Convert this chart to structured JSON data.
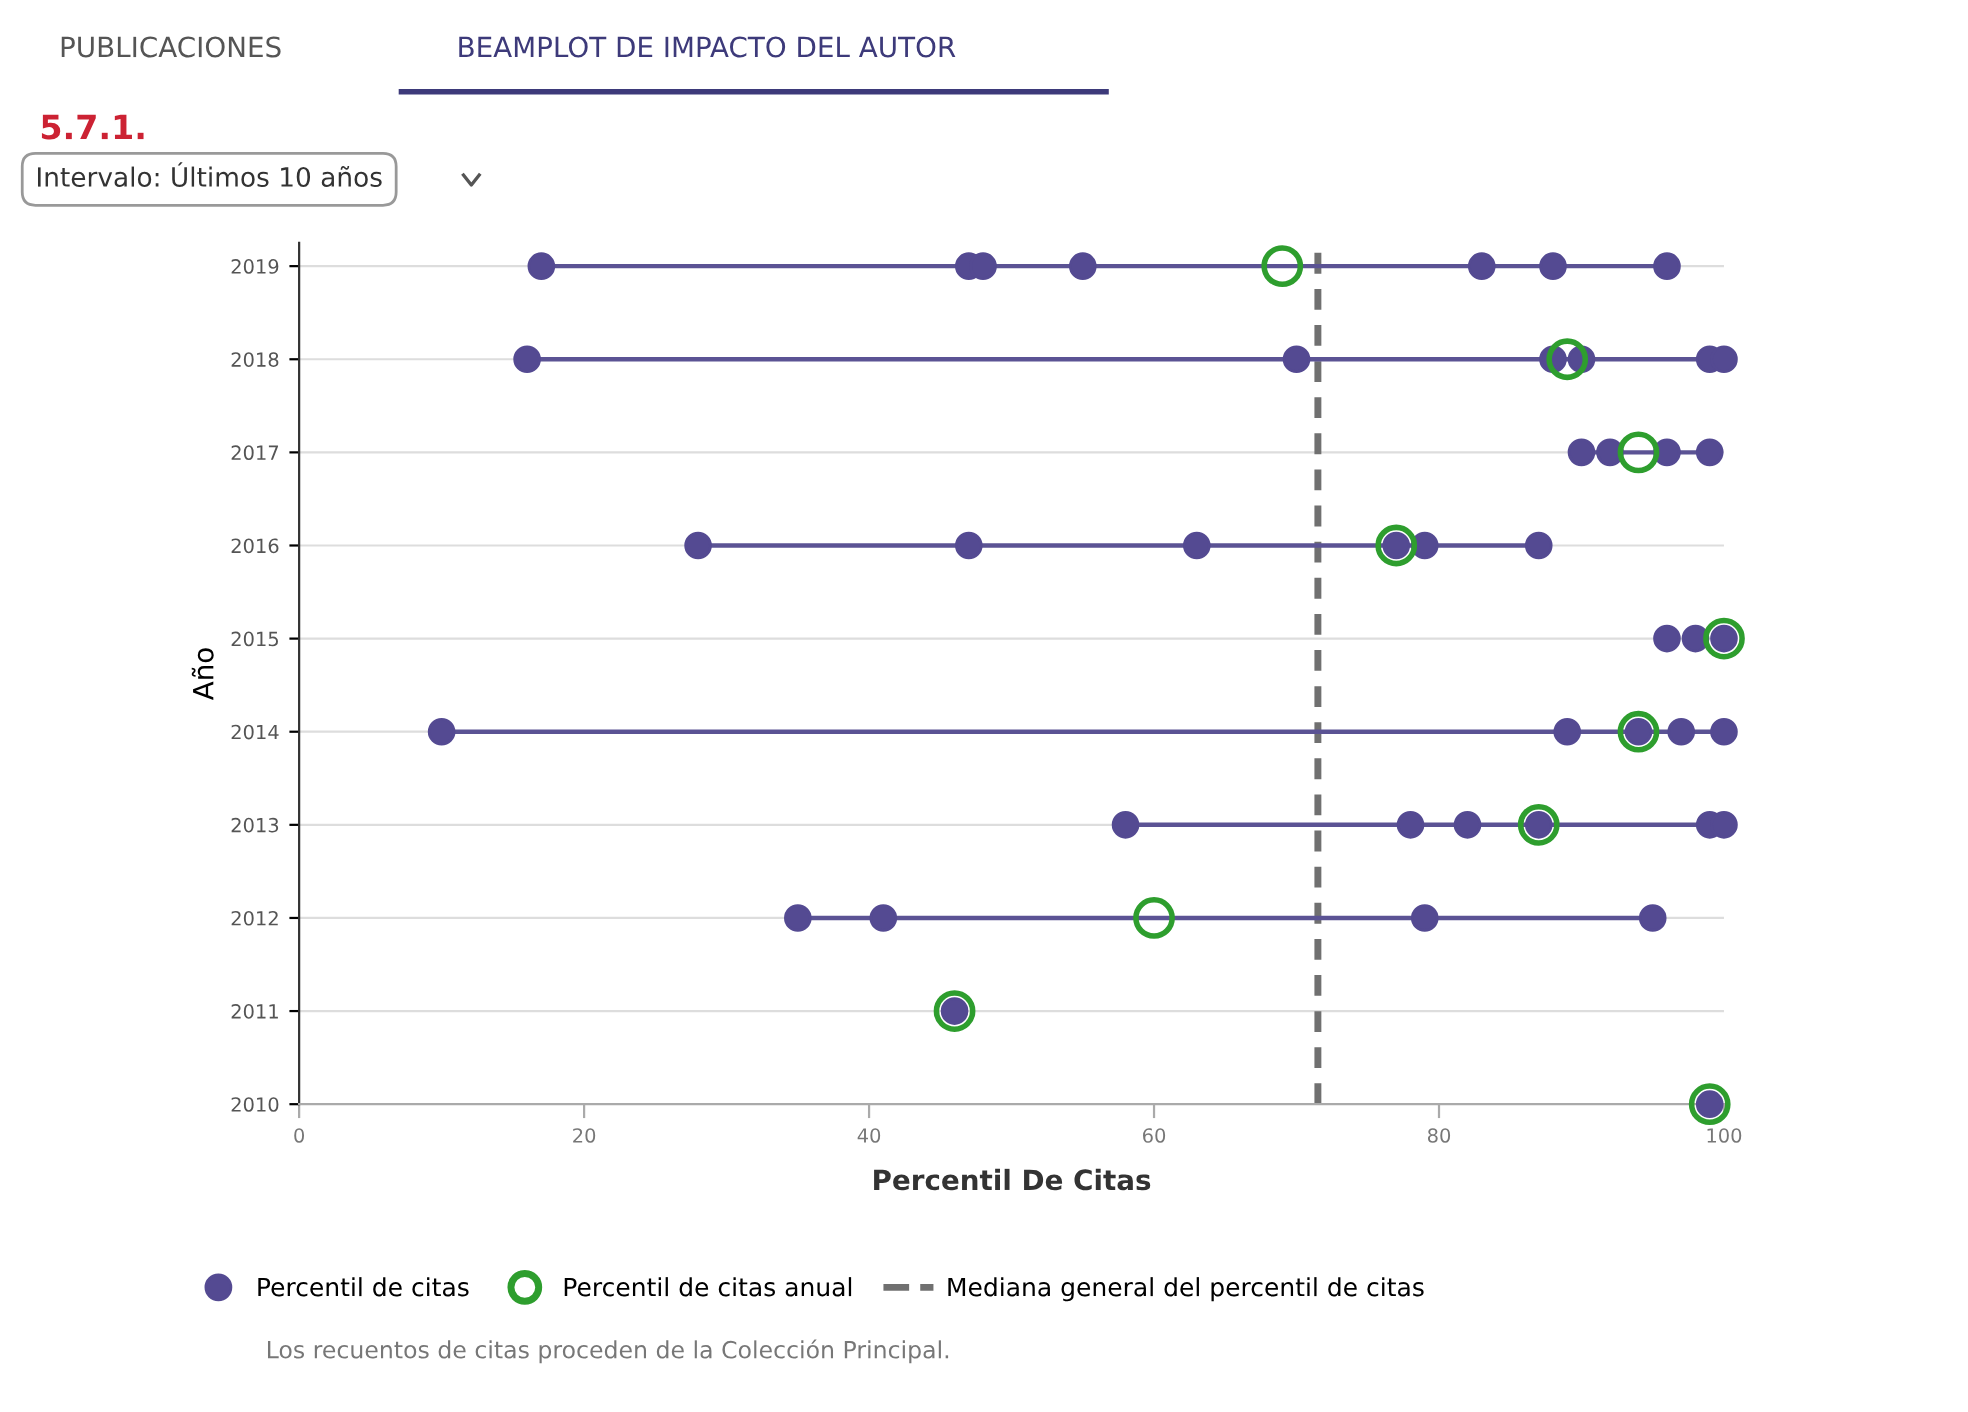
{
  "chart_data": {
    "type": "scatter",
    "xlabel": "Percentil De Citas",
    "ylabel": "Año",
    "annotations": [
      "PUBLICACIONES",
      "BEAMPLOT DE IMPACTO DEL AUTOR",
      "5.7.1.",
      "Intervalo: Últimos 10 años",
      "Los recuentos de citas proceden de la Colección Principal."
    ],
    "xlim": [
      0,
      100
    ],
    "xticks": [
      0,
      20,
      40,
      60,
      80,
      100
    ],
    "ylim": [
      2010,
      2019.25
    ],
    "yticks": [
      2010,
      2011,
      2012,
      2013,
      2014,
      2015,
      2016,
      2017,
      2018,
      2019
    ],
    "grid": "y",
    "legend": "bottom",
    "marker": "circle",
    "series": [
      {
        "type": "line",
        "color": "#5b5394",
        "x": [
          17,
          96
        ],
        "values": [
          2019,
          2019
        ]
      },
      {
        "type": "line",
        "color": "#5b5394",
        "x": [
          16,
          100
        ],
        "values": [
          2018,
          2018
        ]
      },
      {
        "type": "line",
        "color": "#5b5394",
        "x": [
          90,
          99
        ],
        "values": [
          2017,
          2017
        ]
      },
      {
        "type": "line",
        "color": "#5b5394",
        "x": [
          28,
          87
        ],
        "values": [
          2016,
          2016
        ]
      },
      {
        "type": "line",
        "color": "#5b5394",
        "x": [
          10,
          100
        ],
        "values": [
          2014,
          2014
        ]
      },
      {
        "type": "line",
        "color": "#5b5394",
        "x": [
          58,
          100
        ],
        "values": [
          2013,
          2013
        ]
      },
      {
        "type": "line",
        "color": "#5b5394",
        "x": [
          35,
          95
        ],
        "values": [
          2012,
          2012
        ]
      },
      {
        "name": "Percentil de citas",
        "color": "#544a92",
        "x": [
          17,
          47,
          48,
          55,
          83,
          88,
          96,
          16,
          70,
          88,
          90,
          99,
          100,
          90,
          92,
          96,
          99,
          28,
          47,
          63,
          77,
          79,
          87,
          96,
          98,
          100,
          10,
          89,
          94,
          97,
          100,
          58,
          78,
          82,
          87,
          99,
          100,
          35,
          41,
          79,
          95,
          46,
          99
        ],
        "values": [
          2019,
          2019,
          2019,
          2019,
          2019,
          2019,
          2019,
          2018,
          2018,
          2018,
          2018,
          2018,
          2018,
          2017,
          2017,
          2017,
          2017,
          2016,
          2016,
          2016,
          2016,
          2016,
          2016,
          2015,
          2015,
          2015,
          2014,
          2014,
          2014,
          2014,
          2014,
          2013,
          2013,
          2013,
          2013,
          2013,
          2013,
          2012,
          2012,
          2012,
          2012,
          2011,
          2010
        ]
      },
      {
        "name": "Percentil de citas anual",
        "color": "#2e9e2e",
        "x": [
          69,
          89,
          94,
          77,
          100,
          94,
          87,
          60,
          46,
          99
        ],
        "values": [
          2019,
          2018,
          2017,
          2016,
          2015,
          2014,
          2013,
          2012,
          2011,
          2010
        ]
      }
    ],
    "ref_lines": [
      {
        "axis": "x",
        "value": 71.5,
        "label": "Mediana general del percentil de citas",
        "color": "#707070",
        "line_style": "dashed"
      }
    ]
  }
}
